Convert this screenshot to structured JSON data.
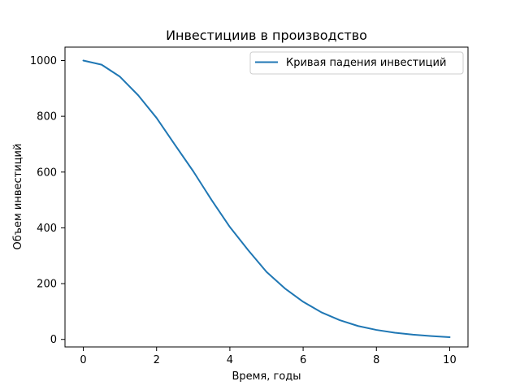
{
  "chart_data": {
    "type": "line",
    "title": "Инвестициив в производство",
    "xlabel": "Время, годы",
    "ylabel": "Объем инвестиций",
    "xlim": [
      -0.5,
      10.5
    ],
    "ylim": [
      -27,
      1048
    ],
    "xticks": [
      0,
      2,
      4,
      6,
      8,
      10
    ],
    "yticks": [
      0,
      200,
      400,
      600,
      800,
      1000
    ],
    "grid": false,
    "legend_position": "top-right",
    "series": [
      {
        "name": "Кривая падения инвестиций",
        "color": "#1f77b4",
        "x": [
          0,
          0.5,
          1,
          1.5,
          2,
          2.5,
          3,
          3.5,
          4,
          4.5,
          5,
          5.5,
          6,
          6.5,
          7,
          7.5,
          8,
          8.5,
          9,
          9.5,
          10
        ],
        "y": [
          1000,
          985,
          942,
          875,
          794,
          698,
          603,
          500,
          403,
          320,
          242,
          183,
          135,
          97,
          69,
          48,
          34,
          24,
          17,
          12,
          8
        ]
      }
    ]
  }
}
